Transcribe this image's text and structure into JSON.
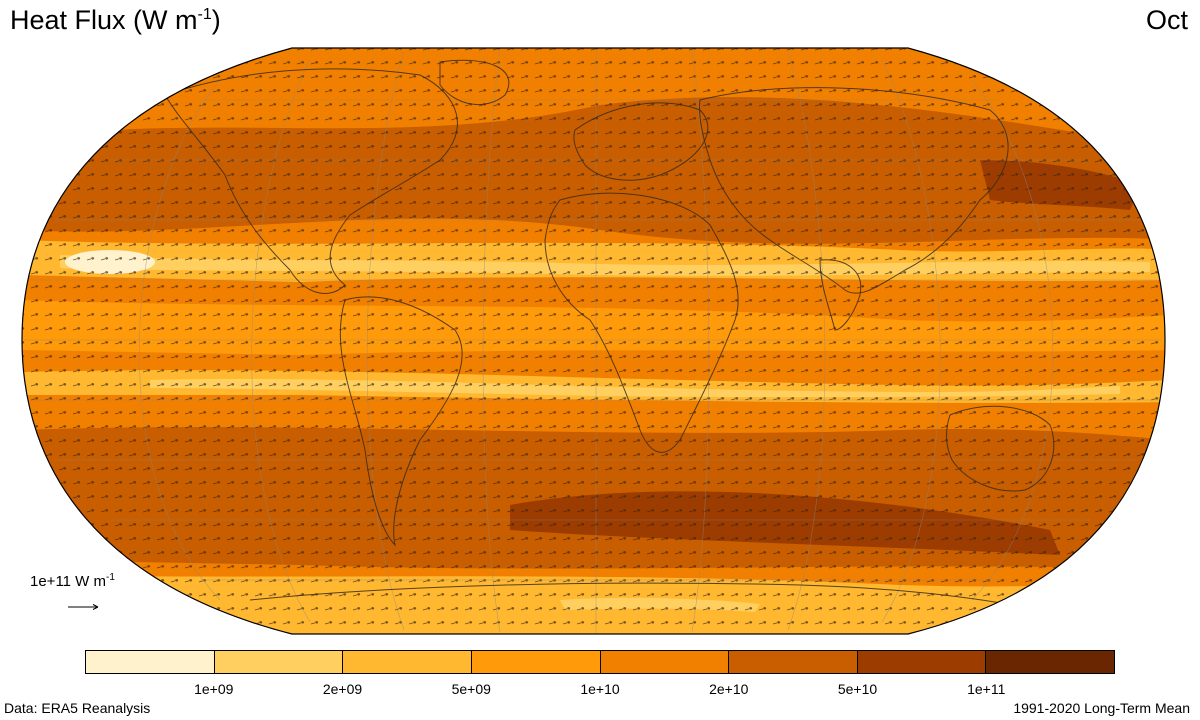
{
  "title": {
    "text": "Heat Flux (W m",
    "sup": "-1",
    "close": ")"
  },
  "month": "Oct",
  "reference_vector": {
    "text": "1e+11 W m",
    "sup": "-1"
  },
  "colorbar": {
    "colors": [
      "#fff2cc",
      "#ffd060",
      "#ffb830",
      "#ff9a0a",
      "#f28000",
      "#c85e00",
      "#9c3c00",
      "#6a2600"
    ],
    "ticks": [
      "1e+09",
      "2e+09",
      "5e+09",
      "1e+10",
      "2e+10",
      "5e+10",
      "1e+11"
    ]
  },
  "footer": {
    "source": "Data: ERA5 Reanalysis",
    "period": "1991-2020 Long-Term Mean"
  }
}
